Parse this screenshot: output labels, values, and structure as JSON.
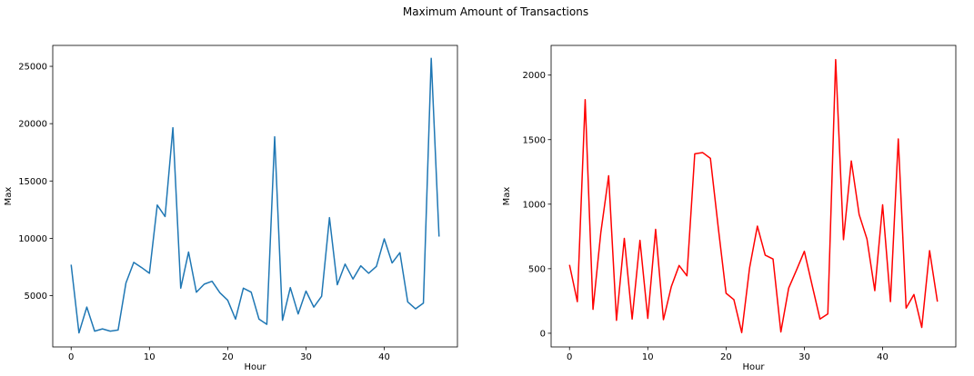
{
  "title": "Maximum Amount of Transactions",
  "chart_data": [
    {
      "type": "line",
      "xlabel": "Hour",
      "ylabel": "Max",
      "xlim": [
        -2.35,
        49.35
      ],
      "ylim": [
        525,
        26825
      ],
      "xticks": [
        0,
        10,
        20,
        30,
        40
      ],
      "yticks": [
        5000,
        10000,
        15000,
        20000,
        25000
      ],
      "color": "#1f77b4",
      "grid": false,
      "series": [
        {
          "x": [
            0,
            1,
            2,
            3,
            4,
            5,
            6,
            7,
            8,
            9,
            10,
            11,
            12,
            13,
            14,
            15,
            16,
            17,
            18,
            19,
            20,
            21,
            22,
            23,
            24,
            25,
            26,
            27,
            28,
            29,
            30,
            31,
            32,
            33,
            34,
            35,
            36,
            37,
            38,
            39,
            40,
            41,
            42,
            43,
            44,
            45,
            46,
            47
          ],
          "values": [
            7700,
            1750,
            4000,
            1900,
            2100,
            1900,
            2000,
            6100,
            7900,
            7450,
            6950,
            12900,
            11900,
            19650,
            5650,
            8800,
            5300,
            6000,
            6250,
            5250,
            4600,
            2950,
            5650,
            5300,
            2950,
            2500,
            18850,
            2850,
            5700,
            3400,
            5400,
            4000,
            4950,
            11800,
            5950,
            7750,
            6450,
            7600,
            6950,
            7550,
            9950,
            7850,
            8750,
            4450,
            3850,
            4350,
            25700,
            10150
          ]
        }
      ]
    },
    {
      "type": "line",
      "xlabel": "Hour",
      "ylabel": "Max",
      "xlim": [
        -2.35,
        49.35
      ],
      "ylim": [
        -106,
        2230
      ],
      "xticks": [
        0,
        10,
        20,
        30,
        40
      ],
      "yticks": [
        0,
        500,
        1000,
        1500,
        2000
      ],
      "color": "#ff0000",
      "grid": false,
      "series": [
        {
          "x": [
            0,
            1,
            2,
            3,
            4,
            5,
            6,
            7,
            8,
            9,
            10,
            11,
            12,
            13,
            14,
            15,
            16,
            17,
            18,
            19,
            20,
            21,
            22,
            23,
            24,
            25,
            26,
            27,
            28,
            29,
            30,
            31,
            32,
            33,
            34,
            35,
            36,
            37,
            38,
            39,
            40,
            41,
            42,
            43,
            44,
            45,
            46,
            47
          ],
          "values": [
            530,
            245,
            1810,
            185,
            780,
            1220,
            100,
            735,
            110,
            720,
            115,
            805,
            105,
            360,
            525,
            445,
            1390,
            1400,
            1355,
            820,
            310,
            260,
            5,
            505,
            830,
            605,
            575,
            10,
            350,
            490,
            635,
            370,
            110,
            150,
            2120,
            725,
            1335,
            920,
            730,
            330,
            995,
            245,
            1505,
            195,
            300,
            45,
            640,
            245
          ]
        }
      ]
    }
  ]
}
